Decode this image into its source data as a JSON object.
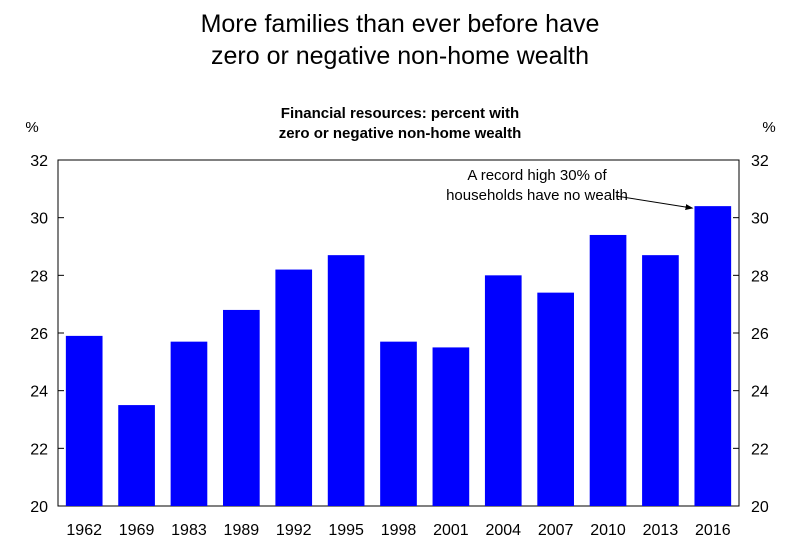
{
  "title_lines": [
    "More families than ever before have",
    "zero or negative non-home wealth"
  ],
  "chart_data": {
    "type": "bar",
    "title": "Financial resources: percent with zero or negative non-home wealth",
    "subtitle_lines": [
      "Financial resources: percent with",
      "zero or negative non-home wealth"
    ],
    "categories": [
      "1962",
      "1969",
      "1983",
      "1989",
      "1992",
      "1995",
      "1998",
      "2001",
      "2004",
      "2007",
      "2010",
      "2013",
      "2016"
    ],
    "values": [
      25.9,
      23.5,
      25.7,
      26.8,
      28.2,
      28.7,
      25.7,
      25.5,
      28.0,
      27.4,
      29.4,
      28.7,
      30.4
    ],
    "ylim": [
      20,
      32
    ],
    "yticks": [
      20,
      22,
      24,
      26,
      28,
      30,
      32
    ],
    "y_unit_left": "%",
    "y_unit_right": "%",
    "bar_color": "#0000FF",
    "grid": false,
    "annotation": {
      "lines": [
        "A record high 30% of",
        "households have no wealth"
      ],
      "target_category": "2016"
    }
  }
}
